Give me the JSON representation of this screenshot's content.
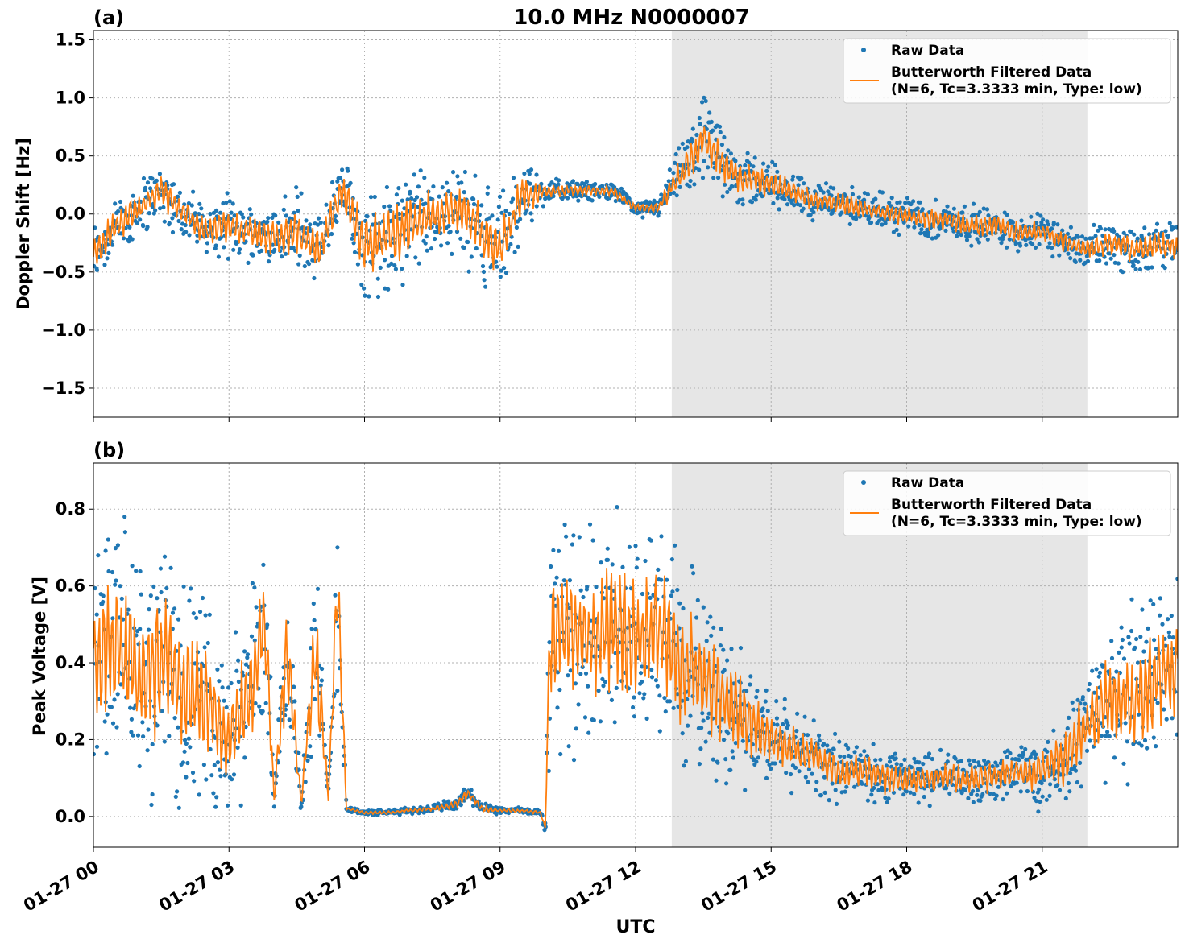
{
  "figure": {
    "xlabel": "UTC",
    "x_tick_labels": [
      "01-27 00",
      "01-27 03",
      "01-27 06",
      "01-27 09",
      "01-27 12",
      "01-27 15",
      "01-27 18",
      "01-27 21"
    ],
    "colors": {
      "raw": "#1f77b4",
      "filtered": "#ff7f0e",
      "shade": "#e6e6e6",
      "grid": "#b0b0b0"
    }
  },
  "chart_data": [
    {
      "type": "scatter",
      "panel_label": "(a)",
      "title": "10.0 MHz N0000007",
      "ylabel": "Doppler Shift [Hz]",
      "xlim": [
        0,
        24
      ],
      "ylim": [
        -1.75,
        1.58
      ],
      "xticks": [
        0,
        3,
        6,
        9,
        12,
        15,
        18,
        21
      ],
      "yticks": [
        -1.5,
        -1.0,
        -0.5,
        0.0,
        0.5,
        1.0,
        1.5
      ],
      "ytick_labels": [
        "−1.5",
        "−1.0",
        "−0.5",
        "0.0",
        "0.5",
        "1.0",
        "1.5"
      ],
      "grid": true,
      "shaded_interval_hours": [
        12.8,
        22.0
      ],
      "legend": {
        "placement": "top-right",
        "raw_label": "Raw Data",
        "filtered_label_line1": "Butterworth Filtered Data",
        "filtered_label_line2": "(N=6, Tc=3.3333 min, Type: low)"
      },
      "series": [
        {
          "name": "Butterworth Filtered Data",
          "x_hours": [
            0,
            0.5,
            1,
            1.5,
            2,
            2.5,
            3,
            3.5,
            4,
            4.5,
            5,
            5.5,
            6,
            6.5,
            7,
            7.5,
            8,
            8.5,
            9,
            9.5,
            10,
            10.5,
            11,
            11.5,
            12,
            12.5,
            13,
            13.5,
            14,
            14.5,
            15,
            15.5,
            16,
            16.5,
            17,
            17.5,
            18,
            18.5,
            19,
            19.5,
            20,
            20.5,
            21,
            21.5,
            22,
            22.5,
            23,
            23.5,
            24
          ],
          "y": [
            -0.35,
            -0.1,
            0.05,
            0.2,
            0.0,
            -0.15,
            -0.1,
            -0.15,
            -0.2,
            -0.15,
            -0.3,
            0.2,
            -0.25,
            -0.2,
            -0.1,
            0.0,
            0.05,
            -0.1,
            -0.3,
            0.15,
            0.2,
            0.2,
            0.2,
            0.2,
            0.05,
            0.05,
            0.35,
            0.65,
            0.4,
            0.3,
            0.25,
            0.2,
            0.1,
            0.1,
            0.05,
            0.0,
            0.0,
            -0.05,
            -0.05,
            -0.1,
            -0.1,
            -0.15,
            -0.15,
            -0.25,
            -0.3,
            -0.25,
            -0.3,
            -0.25,
            -0.3
          ]
        },
        {
          "name": "Raw Data",
          "x_hours": [
            0,
            0.5,
            1,
            1.5,
            2,
            2.5,
            3,
            3.5,
            4,
            4.5,
            5,
            5.5,
            6,
            6.5,
            7,
            7.5,
            8,
            8.5,
            9,
            9.5,
            10,
            10.5,
            11,
            11.5,
            12,
            12.5,
            13,
            13.5,
            14,
            14.5,
            15,
            15.5,
            16,
            16.5,
            17,
            17.5,
            18,
            18.5,
            19,
            19.5,
            20,
            20.5,
            21,
            21.5,
            22,
            22.5,
            23,
            23.5,
            24
          ],
          "y_spread": [
            0.35,
            0.3,
            0.3,
            0.3,
            0.3,
            0.25,
            0.3,
            0.3,
            0.35,
            0.45,
            0.4,
            0.35,
            0.55,
            0.55,
            0.6,
            0.45,
            0.45,
            0.5,
            0.55,
            0.4,
            0.15,
            0.1,
            0.1,
            0.08,
            0.08,
            0.1,
            0.3,
            0.45,
            0.35,
            0.3,
            0.25,
            0.2,
            0.2,
            0.2,
            0.2,
            0.2,
            0.2,
            0.2,
            0.2,
            0.2,
            0.2,
            0.2,
            0.2,
            0.2,
            0.2,
            0.25,
            0.25,
            0.25,
            0.25
          ]
        }
      ]
    },
    {
      "type": "scatter",
      "panel_label": "(b)",
      "title": "",
      "ylabel": "Peak Voltage [V]",
      "xlim": [
        0,
        24
      ],
      "ylim": [
        -0.08,
        0.92
      ],
      "xticks": [
        0,
        3,
        6,
        9,
        12,
        15,
        18,
        21
      ],
      "yticks": [
        0.0,
        0.2,
        0.4,
        0.6,
        0.8
      ],
      "ytick_labels": [
        "0.0",
        "0.2",
        "0.4",
        "0.6",
        "0.8"
      ],
      "grid": true,
      "shaded_interval_hours": [
        12.8,
        22.0
      ],
      "legend": {
        "placement": "top-right",
        "raw_label": "Raw Data",
        "filtered_label_line1": "Butterworth Filtered Data",
        "filtered_label_line2": "(N=6, Tc=3.3333 min, Type: low)"
      },
      "series": [
        {
          "name": "Butterworth Filtered Data",
          "x_hours": [
            0,
            0.5,
            1,
            1.5,
            2,
            2.5,
            3,
            3.5,
            3.8,
            4.0,
            4.3,
            4.6,
            4.9,
            5.2,
            5.4,
            5.6,
            6,
            6.5,
            7,
            7.5,
            8,
            8.3,
            8.6,
            9,
            9.5,
            9.9,
            10.0,
            10.1,
            10.5,
            11,
            11.5,
            12,
            12.5,
            13,
            13.5,
            14,
            14.5,
            15,
            15.5,
            16,
            16.5,
            17,
            17.5,
            18,
            18.5,
            19,
            19.5,
            20,
            20.5,
            21,
            21.5,
            22,
            22.5,
            23,
            23.5,
            24
          ],
          "y": [
            0.4,
            0.45,
            0.35,
            0.4,
            0.35,
            0.3,
            0.2,
            0.35,
            0.5,
            0.05,
            0.45,
            0.03,
            0.45,
            0.05,
            0.6,
            0.02,
            0.01,
            0.01,
            0.015,
            0.02,
            0.03,
            0.06,
            0.02,
            0.015,
            0.015,
            0.01,
            -0.03,
            0.45,
            0.5,
            0.45,
            0.5,
            0.45,
            0.5,
            0.4,
            0.35,
            0.3,
            0.25,
            0.2,
            0.18,
            0.15,
            0.12,
            0.12,
            0.1,
            0.1,
            0.1,
            0.1,
            0.1,
            0.1,
            0.12,
            0.12,
            0.15,
            0.25,
            0.3,
            0.3,
            0.35,
            0.4
          ]
        },
        {
          "name": "Raw Data",
          "x_hours": [
            0,
            0.5,
            1,
            1.5,
            2,
            2.5,
            3,
            3.5,
            3.8,
            4.0,
            4.3,
            4.6,
            4.9,
            5.2,
            5.4,
            5.6,
            6,
            6.5,
            7,
            7.5,
            8,
            8.3,
            8.6,
            9,
            9.5,
            9.9,
            10.0,
            10.1,
            10.5,
            11,
            11.5,
            12,
            12.5,
            13,
            13.5,
            14,
            14.5,
            15,
            15.5,
            16,
            16.5,
            17,
            17.5,
            18,
            18.5,
            19,
            19.5,
            20,
            20.5,
            21,
            21.5,
            22,
            22.5,
            23,
            23.5,
            24
          ],
          "y_spread": [
            0.35,
            0.4,
            0.4,
            0.4,
            0.35,
            0.3,
            0.25,
            0.35,
            0.3,
            0.03,
            0.35,
            0.03,
            0.35,
            0.03,
            0.3,
            0.01,
            0.008,
            0.008,
            0.01,
            0.012,
            0.02,
            0.03,
            0.015,
            0.01,
            0.01,
            0.01,
            0.02,
            0.35,
            0.35,
            0.35,
            0.35,
            0.35,
            0.35,
            0.35,
            0.3,
            0.25,
            0.2,
            0.15,
            0.12,
            0.12,
            0.1,
            0.09,
            0.09,
            0.08,
            0.08,
            0.08,
            0.08,
            0.09,
            0.1,
            0.12,
            0.15,
            0.2,
            0.25,
            0.3,
            0.3,
            0.3
          ]
        }
      ]
    }
  ]
}
